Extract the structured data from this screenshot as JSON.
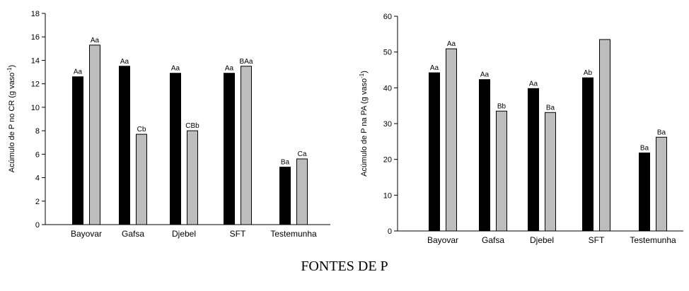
{
  "footer_label": "FONTES DE P",
  "chart_data": [
    {
      "type": "bar",
      "categories": [
        "Bayovar",
        "Gafsa",
        "Djebel",
        "SFT",
        "Testemunha"
      ],
      "ylabel": "Acúmulo de P no CR (g vaso",
      "ylabel_sup": "-1",
      "ylabel_end": ")",
      "ylim": [
        0,
        18
      ],
      "yticks": [
        0,
        2,
        4,
        6,
        8,
        10,
        12,
        14,
        16,
        18
      ],
      "series": [
        {
          "values": [
            12.6,
            13.5,
            12.9,
            12.9,
            4.9
          ],
          "labels": [
            "Aa",
            "Aa",
            "Aa",
            "Aa",
            "Ba"
          ]
        },
        {
          "values": [
            15.3,
            7.7,
            8.0,
            13.5,
            5.6
          ],
          "labels": [
            "Aa",
            "Cb",
            "CBb",
            "BAa",
            "Ca"
          ]
        }
      ],
      "colors": [
        "#000000",
        "#bdbdbd"
      ],
      "grid": false
    },
    {
      "type": "bar",
      "categories": [
        "Bayovar",
        "Gafsa",
        "Djebel",
        "SFT",
        "Testemunha"
      ],
      "ylabel": "Acúmulo de P na PA (g vaso",
      "ylabel_sup": "-1",
      "ylabel_end": ")",
      "ylim": [
        0,
        60
      ],
      "yticks": [
        0,
        10,
        20,
        30,
        40,
        50,
        60
      ],
      "series": [
        {
          "values": [
            44.2,
            42.3,
            39.8,
            42.8,
            21.8
          ],
          "labels": [
            "Aa",
            "Aa",
            "Aa",
            "Ab",
            "Ba"
          ]
        },
        {
          "values": [
            50.9,
            33.5,
            33.1,
            53.5,
            26.2
          ],
          "labels": [
            "Aa",
            "Bb",
            "Ba",
            "",
            "Ba"
          ]
        }
      ],
      "colors": [
        "#000000",
        "#bdbdbd"
      ],
      "grid": false
    }
  ]
}
